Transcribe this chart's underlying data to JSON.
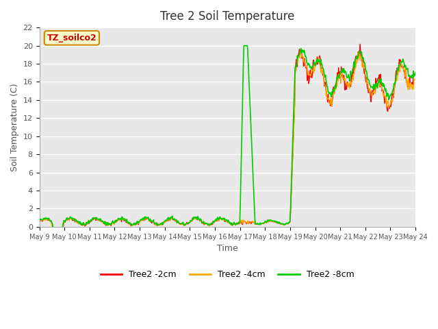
{
  "title": "Tree 2 Soil Temperature",
  "xlabel": "Time",
  "ylabel": "Soil Temperature (C)",
  "ylim": [
    0,
    22
  ],
  "yticks": [
    0,
    2,
    4,
    6,
    8,
    10,
    12,
    14,
    16,
    18,
    20,
    22
  ],
  "xtick_labels": [
    "May 9",
    "May 10",
    "May 11",
    "May 12",
    "May 13",
    "May 14",
    "May 15",
    "May 16",
    "May 17",
    "May 18",
    "May 19",
    "May 20",
    "May 21",
    "May 22",
    "May 23",
    "May 24"
  ],
  "background_color": "#e8e8e8",
  "plot_bg_color": "#e8e8e8",
  "line_colors": {
    "2cm": "#ff0000",
    "4cm": "#ffa500",
    "8cm": "#00cc00"
  },
  "legend_label_2cm": "Tree2 -2cm",
  "legend_label_4cm": "Tree2 -4cm",
  "legend_label_8cm": "Tree2 -8cm",
  "annotation_text": "TZ_soilco2",
  "annotation_color": "#cc0000",
  "annotation_bg": "#ffffcc",
  "annotation_border": "#cc8800"
}
